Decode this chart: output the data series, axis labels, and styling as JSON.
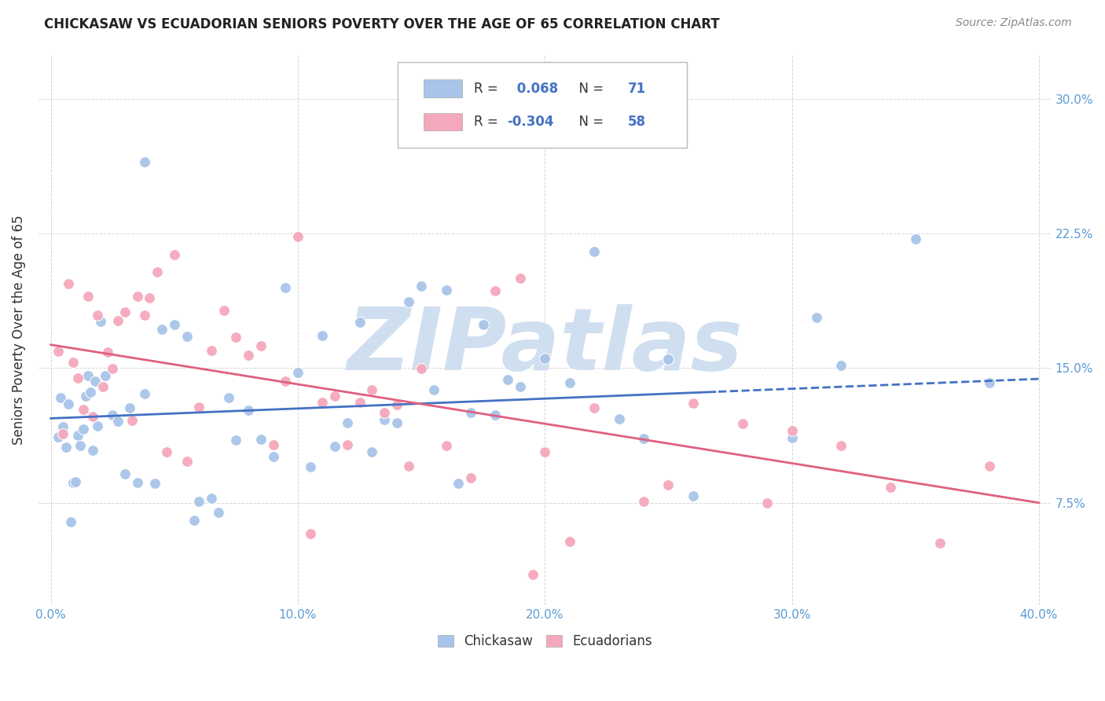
{
  "title": "CHICKASAW VS ECUADORIAN SENIORS POVERTY OVER THE AGE OF 65 CORRELATION CHART",
  "source": "Source: ZipAtlas.com",
  "xlabel_ticks": [
    "0.0%",
    "10.0%",
    "20.0%",
    "30.0%",
    "40.0%"
  ],
  "xlabel_vals": [
    0.0,
    0.1,
    0.2,
    0.3,
    0.4
  ],
  "ylabel": "Seniors Poverty Over the Age of 65",
  "ylabel_ticks_right": [
    "30.0%",
    "22.5%",
    "15.0%",
    "7.5%"
  ],
  "ylabel_vals": [
    0.075,
    0.15,
    0.225,
    0.3
  ],
  "xlim": [
    -0.005,
    0.405
  ],
  "ylim": [
    0.018,
    0.325
  ],
  "chickasaw_R": 0.068,
  "chickasaw_N": 71,
  "ecuadorian_R": -0.304,
  "ecuadorian_N": 58,
  "chickasaw_color": "#a8c4e8",
  "ecuadorian_color": "#f5a8bc",
  "chickasaw_line_color": "#4472c4",
  "ecuadorian_line_color": "#e06080",
  "watermark": "ZIPatlas",
  "watermark_color": "#d0dff0",
  "legend_R_color": "#4472c4",
  "legend_text_color": "#333333",
  "grid_color": "#cccccc",
  "tick_color": "#5b9bd5",
  "title_color": "#222222",
  "source_color": "#888888",
  "chick_line_intercept": 0.122,
  "chick_line_slope": 0.055,
  "ecua_line_intercept": 0.163,
  "ecua_line_slope": -0.22
}
